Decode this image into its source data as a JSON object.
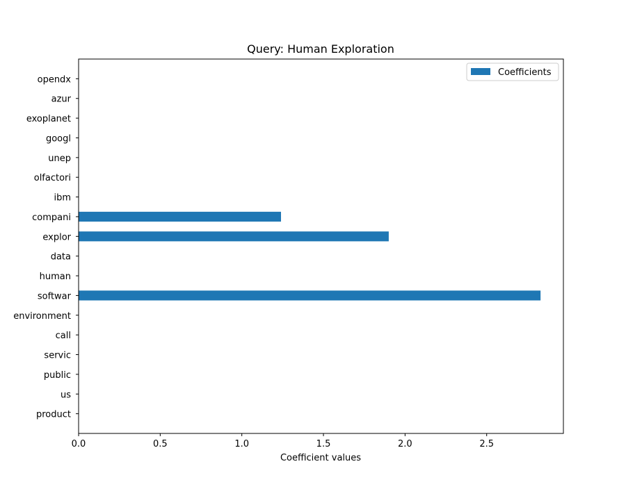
{
  "chart_data": {
    "type": "bar",
    "orientation": "horizontal",
    "title": "Query: Human Exploration",
    "xlabel": "Coefficient values",
    "ylabel": "",
    "xlim": [
      0,
      2.97
    ],
    "xticks": [
      0.0,
      0.5,
      1.0,
      1.5,
      2.0,
      2.5
    ],
    "xtick_labels": [
      "0.0",
      "0.5",
      "1.0",
      "1.5",
      "2.0",
      "2.5"
    ],
    "categories": [
      "opendx",
      "azur",
      "exoplanet",
      "googl",
      "unep",
      "olfactori",
      "ibm",
      "compani",
      "explor",
      "data",
      "human",
      "softwar",
      "environment",
      "call",
      "servic",
      "public",
      "us",
      "product"
    ],
    "series": [
      {
        "name": "Coefficients",
        "color": "#1f77b4",
        "values": [
          0,
          0,
          0,
          0,
          0,
          0,
          0,
          1.24,
          1.9,
          0,
          0,
          2.83,
          0,
          0,
          0,
          0,
          0,
          0
        ]
      }
    ],
    "legend_position": "top-right",
    "grid": false
  }
}
